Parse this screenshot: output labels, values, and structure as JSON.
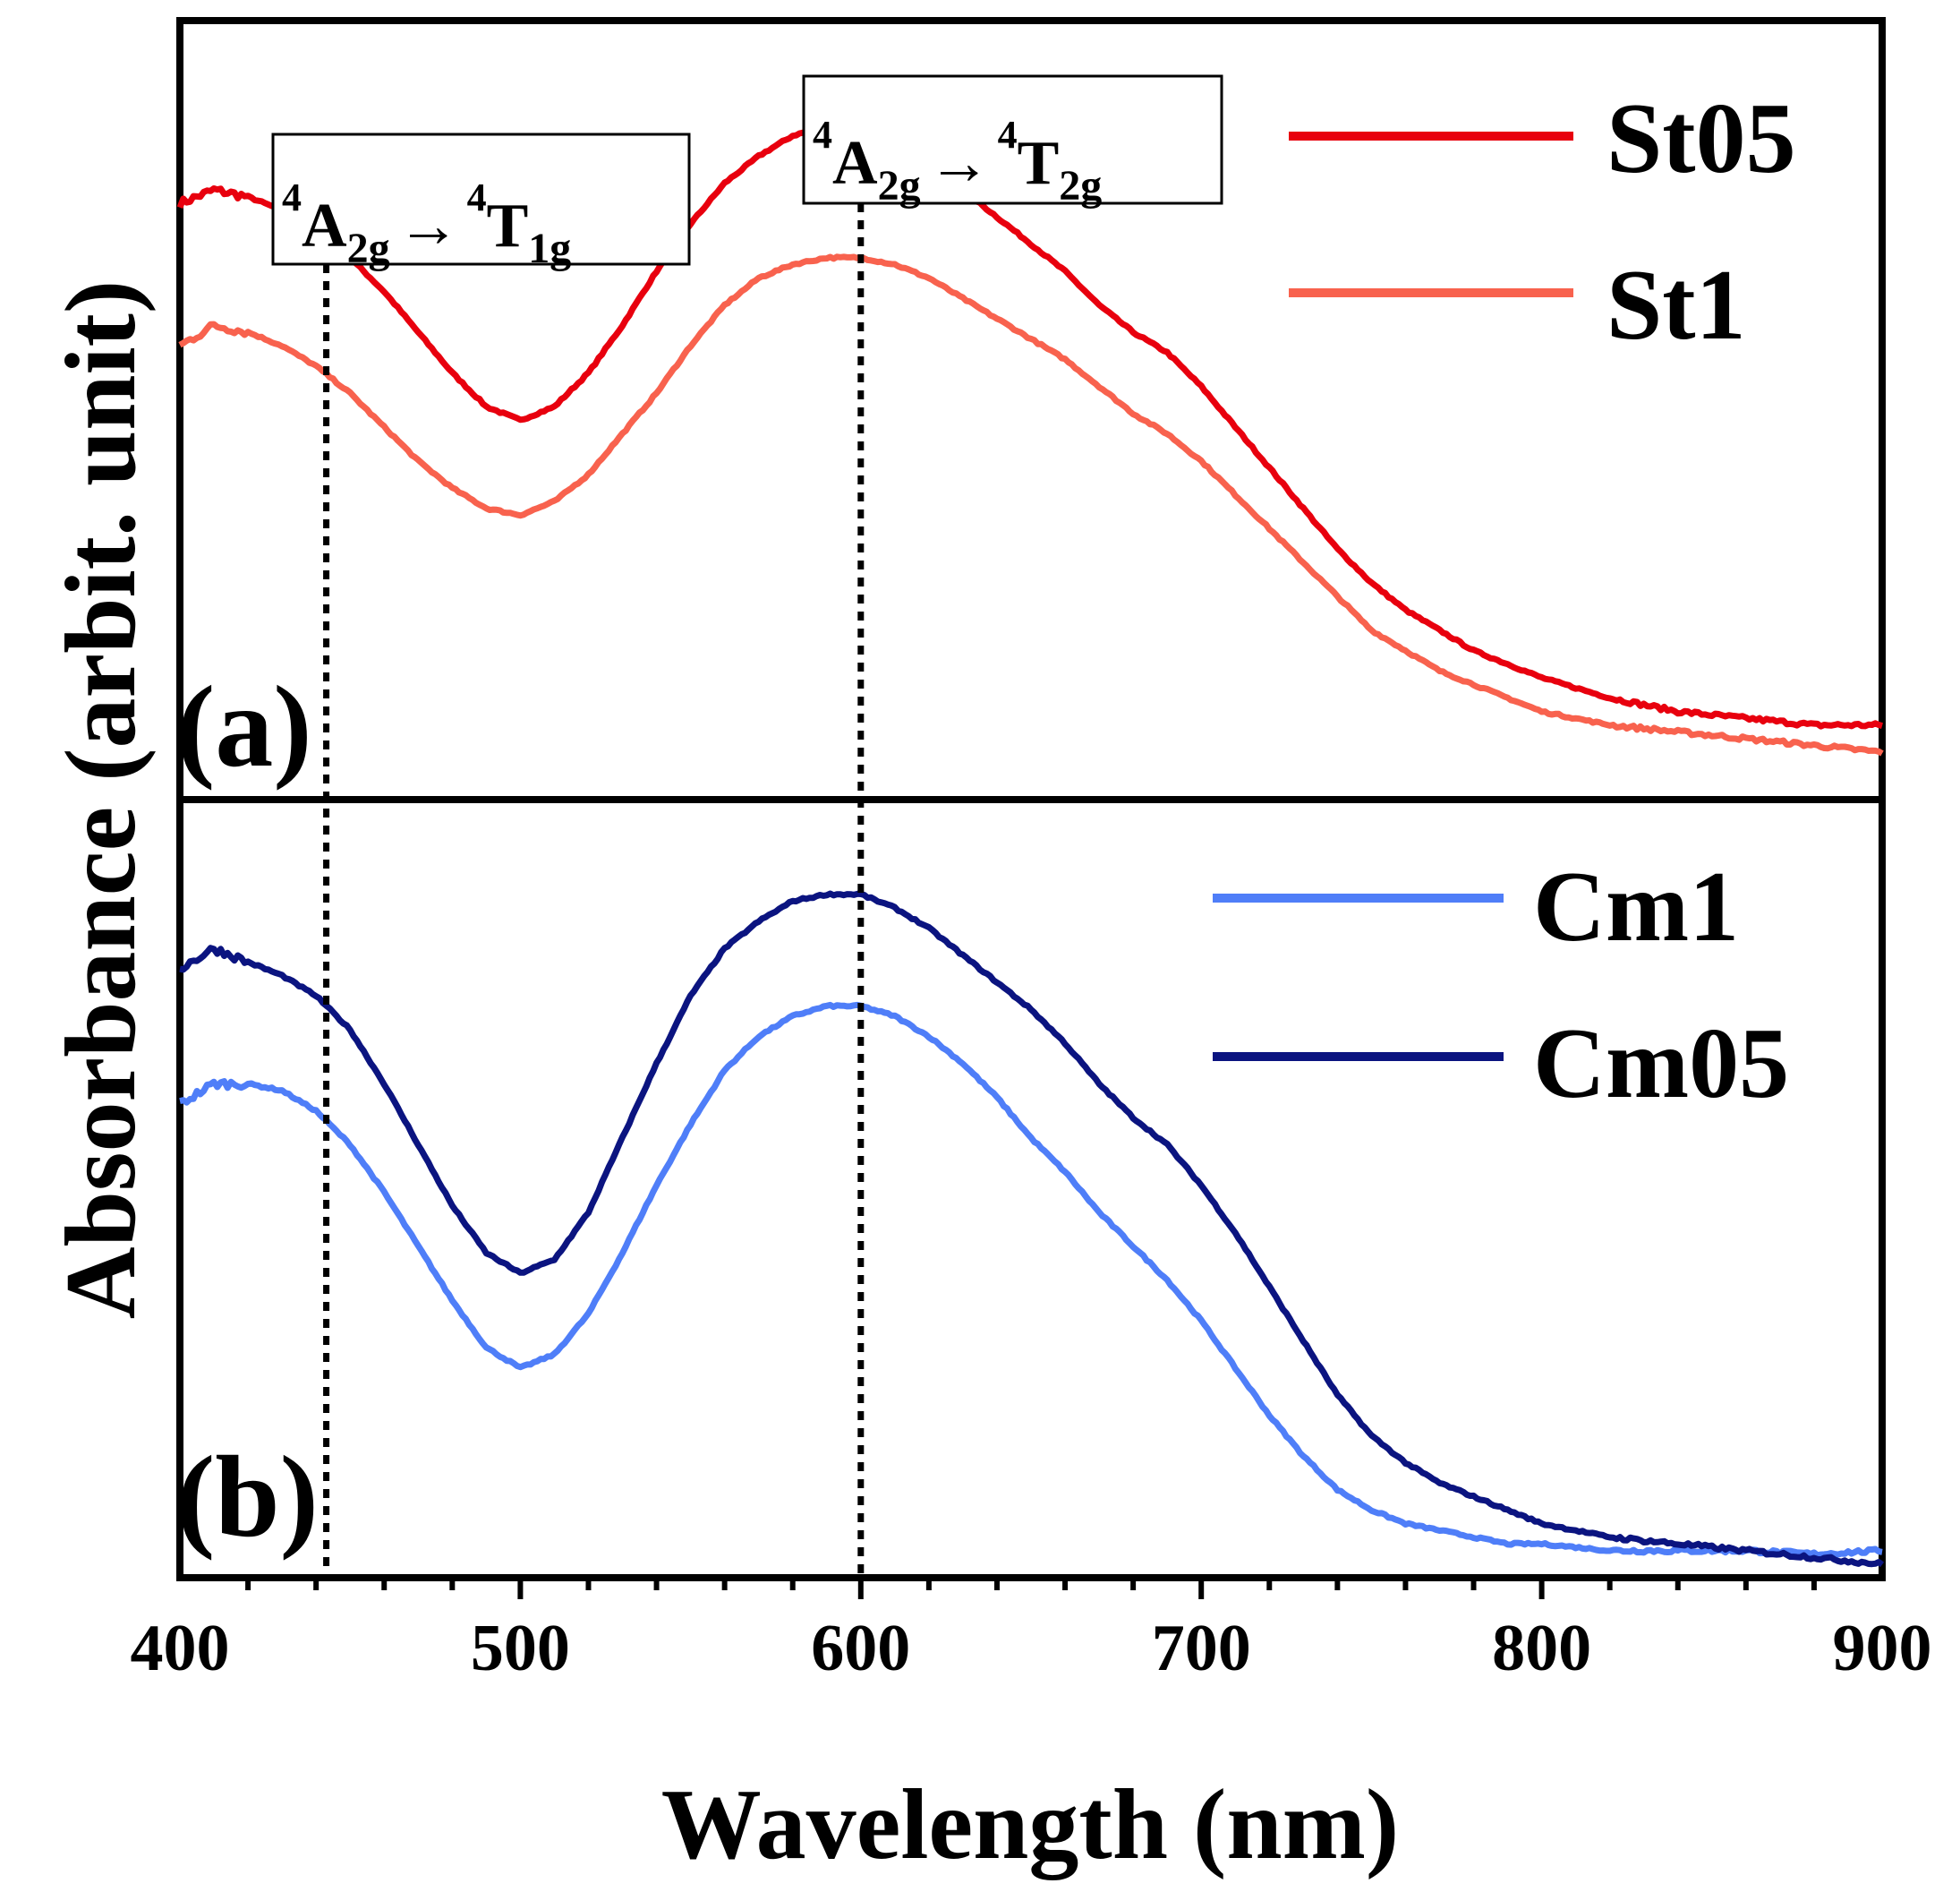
{
  "chart_data": {
    "type": "line",
    "xlabel": "Wavelength (nm)",
    "ylabel": "Absorbance (arbit. unit)",
    "xlim": [
      400,
      900
    ],
    "xticks": [
      "400",
      "500",
      "600",
      "700",
      "800",
      "900"
    ],
    "colors": {
      "St05": "#e8000e",
      "St1": "#f8624e",
      "Cm1": "#4f7ef8",
      "Cm05": "#0b1480"
    },
    "annotations": [
      {
        "name": "transition-1",
        "x": 443,
        "parts": {
          "a": "4",
          "b": "A",
          "c": "2g",
          "arrow": "→",
          "d": "4",
          "e": "T",
          "f": "1g"
        }
      },
      {
        "name": "transition-2",
        "x": 600,
        "parts": {
          "a": "4",
          "b": "A",
          "c": "2g",
          "arrow": "→",
          "d": "4",
          "e": "T",
          "f": "2g"
        }
      }
    ],
    "panels": [
      {
        "label": "(a)",
        "ylim": [
          0.05,
          1.2
        ],
        "legend": [
          "St05",
          "St1"
        ],
        "series": [
          {
            "name": "St05",
            "x": [
              400,
              410,
              420,
              430,
              440,
              450,
              460,
              470,
              480,
              490,
              500,
              510,
              520,
              530,
              540,
              550,
              560,
              570,
              580,
              590,
              600,
              610,
              620,
              630,
              640,
              650,
              660,
              670,
              680,
              690,
              700,
              710,
              720,
              730,
              740,
              750,
              760,
              770,
              780,
              790,
              800,
              820,
              840,
              860,
              880,
              900
            ],
            "values": [
              0.93,
              0.95,
              0.94,
              0.92,
              0.89,
              0.85,
              0.8,
              0.74,
              0.68,
              0.63,
              0.61,
              0.63,
              0.68,
              0.75,
              0.83,
              0.9,
              0.96,
              1.0,
              1.03,
              1.045,
              1.04,
              1.02,
              0.99,
              0.95,
              0.91,
              0.87,
              0.83,
              0.78,
              0.74,
              0.71,
              0.66,
              0.6,
              0.54,
              0.48,
              0.42,
              0.37,
              0.33,
              0.3,
              0.27,
              0.25,
              0.23,
              0.2,
              0.18,
              0.17,
              0.16,
              0.16
            ]
          },
          {
            "name": "St1",
            "x": [
              400,
              410,
              420,
              430,
              440,
              450,
              460,
              470,
              480,
              490,
              500,
              510,
              520,
              530,
              540,
              550,
              560,
              570,
              580,
              590,
              600,
              610,
              620,
              630,
              640,
              650,
              660,
              670,
              680,
              690,
              700,
              710,
              720,
              730,
              740,
              750,
              760,
              770,
              780,
              790,
              800,
              820,
              840,
              860,
              880,
              900
            ],
            "values": [
              0.72,
              0.75,
              0.74,
              0.72,
              0.69,
              0.65,
              0.6,
              0.55,
              0.51,
              0.48,
              0.47,
              0.49,
              0.53,
              0.59,
              0.65,
              0.72,
              0.78,
              0.82,
              0.84,
              0.85,
              0.85,
              0.84,
              0.82,
              0.79,
              0.76,
              0.73,
              0.7,
              0.66,
              0.62,
              0.59,
              0.55,
              0.5,
              0.45,
              0.4,
              0.35,
              0.3,
              0.27,
              0.24,
              0.22,
              0.2,
              0.18,
              0.16,
              0.15,
              0.14,
              0.13,
              0.12
            ]
          }
        ]
      },
      {
        "label": "(b)",
        "ylim": [
          0.05,
          1.2
        ],
        "legend": [
          "Cm1",
          "Cm05"
        ],
        "series": [
          {
            "name": "Cm1",
            "x": [
              400,
              410,
              420,
              430,
              440,
              450,
              460,
              470,
              480,
              490,
              500,
              510,
              520,
              530,
              540,
              550,
              560,
              570,
              580,
              590,
              600,
              610,
              620,
              630,
              640,
              650,
              660,
              670,
              680,
              690,
              700,
              710,
              720,
              730,
              740,
              750,
              760,
              770,
              780,
              790,
              800,
              820,
              840,
              860,
              880,
              900
            ],
            "values": [
              0.75,
              0.78,
              0.78,
              0.77,
              0.74,
              0.69,
              0.62,
              0.54,
              0.46,
              0.39,
              0.36,
              0.38,
              0.44,
              0.53,
              0.63,
              0.72,
              0.8,
              0.85,
              0.88,
              0.895,
              0.895,
              0.88,
              0.85,
              0.81,
              0.76,
              0.7,
              0.65,
              0.59,
              0.54,
              0.49,
              0.43,
              0.36,
              0.29,
              0.23,
              0.18,
              0.15,
              0.13,
              0.12,
              0.11,
              0.1,
              0.1,
              0.09,
              0.09,
              0.09,
              0.085,
              0.09
            ]
          },
          {
            "name": "Cm05",
            "x": [
              400,
              410,
              420,
              430,
              440,
              450,
              460,
              470,
              480,
              490,
              500,
              510,
              520,
              530,
              540,
              550,
              560,
              570,
              580,
              590,
              600,
              610,
              620,
              630,
              640,
              650,
              660,
              670,
              680,
              690,
              700,
              710,
              720,
              730,
              740,
              750,
              760,
              770,
              780,
              790,
              800,
              820,
              840,
              860,
              880,
              900
            ],
            "values": [
              0.95,
              0.98,
              0.96,
              0.94,
              0.91,
              0.86,
              0.78,
              0.69,
              0.6,
              0.53,
              0.5,
              0.52,
              0.59,
              0.7,
              0.81,
              0.91,
              0.98,
              1.02,
              1.05,
              1.06,
              1.06,
              1.04,
              1.01,
              0.97,
              0.93,
              0.89,
              0.84,
              0.78,
              0.73,
              0.69,
              0.63,
              0.56,
              0.48,
              0.4,
              0.32,
              0.26,
              0.22,
              0.19,
              0.17,
              0.15,
              0.13,
              0.11,
              0.1,
              0.09,
              0.08,
              0.07
            ]
          }
        ]
      }
    ]
  }
}
